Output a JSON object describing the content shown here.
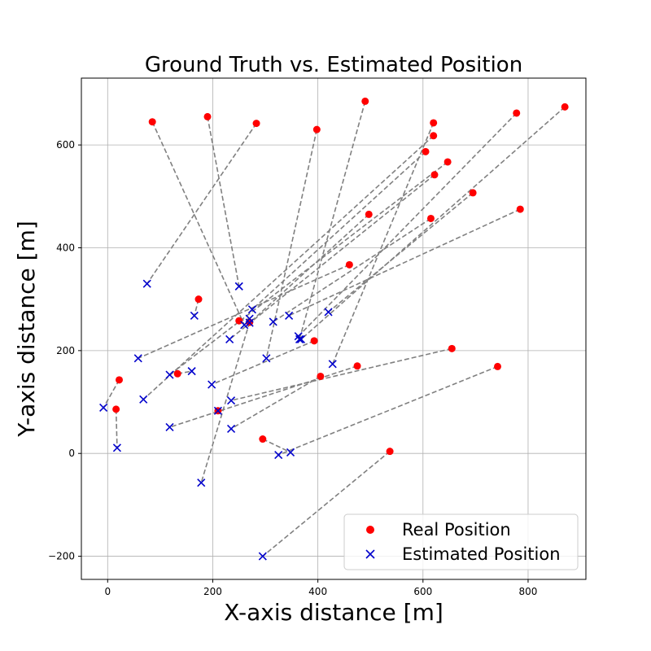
{
  "chart_data": {
    "type": "scatter",
    "title": "Ground Truth vs. Estimated Position",
    "xlabel": "X-axis distance [m]",
    "ylabel": "Y-axis distance [m]",
    "xlim": [
      -50,
      910
    ],
    "ylim": [
      -245,
      730
    ],
    "xticks": [
      0,
      200,
      400,
      600,
      800
    ],
    "yticks": [
      -200,
      0,
      200,
      400,
      600
    ],
    "grid": true,
    "legend_position": "bottom-right",
    "series": [
      {
        "name": "Real Position",
        "marker": "circle",
        "color": "#ff0000"
      },
      {
        "name": "Estimated Position",
        "marker": "x",
        "color": "#0000cc"
      }
    ],
    "connector_color": "#808080",
    "pairs": [
      {
        "real": [
          85,
          645
        ],
        "est": [
          260,
          250
        ]
      },
      {
        "real": [
          190,
          655
        ],
        "est": [
          250,
          325
        ]
      },
      {
        "real": [
          283,
          642
        ],
        "est": [
          75,
          330
        ]
      },
      {
        "real": [
          398,
          630
        ],
        "est": [
          302,
          185
        ]
      },
      {
        "real": [
          490,
          685
        ],
        "est": [
          365,
          222
        ]
      },
      {
        "real": [
          620,
          643
        ],
        "est": [
          428,
          174
        ]
      },
      {
        "real": [
          620,
          618
        ],
        "est": [
          68,
          105
        ]
      },
      {
        "real": [
          605,
          587
        ],
        "est": [
          275,
          280
        ]
      },
      {
        "real": [
          778,
          662
        ],
        "est": [
          363,
          228
        ]
      },
      {
        "real": [
          870,
          674
        ],
        "est": [
          368,
          222
        ]
      },
      {
        "real": [
          647,
          567
        ],
        "est": [
          118,
          153
        ]
      },
      {
        "real": [
          622,
          542
        ],
        "est": [
          232,
          222
        ]
      },
      {
        "real": [
          695,
          507
        ],
        "est": [
          420,
          275
        ]
      },
      {
        "real": [
          497,
          465
        ],
        "est": [
          270,
          254
        ]
      },
      {
        "real": [
          615,
          457
        ],
        "est": [
          315,
          256
        ]
      },
      {
        "real": [
          785,
          475
        ],
        "est": [
          345,
          268
        ]
      },
      {
        "real": [
          460,
          367
        ],
        "est": [
          58,
          185
        ]
      },
      {
        "real": [
          173,
          300
        ],
        "est": [
          165,
          268
        ]
      },
      {
        "real": [
          250,
          258
        ],
        "est": [
          270,
          262
        ]
      },
      {
        "real": [
          393,
          219
        ],
        "est": [
          198,
          134
        ]
      },
      {
        "real": [
          133,
          155
        ],
        "est": [
          160,
          160
        ]
      },
      {
        "real": [
          655,
          204
        ],
        "est": [
          235,
          103
        ]
      },
      {
        "real": [
          742,
          169
        ],
        "est": [
          325,
          -3
        ]
      },
      {
        "real": [
          475,
          170
        ],
        "est": [
          118,
          51
        ]
      },
      {
        "real": [
          405,
          150
        ],
        "est": [
          235,
          48
        ]
      },
      {
        "real": [
          210,
          83
        ],
        "est": [
          210,
          83
        ]
      },
      {
        "real": [
          22,
          143
        ],
        "est": [
          -8,
          89
        ]
      },
      {
        "real": [
          16,
          86
        ],
        "est": [
          18,
          11
        ]
      },
      {
        "real": [
          295,
          28
        ],
        "est": [
          348,
          2
        ]
      },
      {
        "real": [
          537,
          4
        ],
        "est": [
          295,
          -200
        ]
      },
      {
        "real": [
          270,
          255
        ],
        "est": [
          178,
          -57
        ]
      }
    ]
  }
}
